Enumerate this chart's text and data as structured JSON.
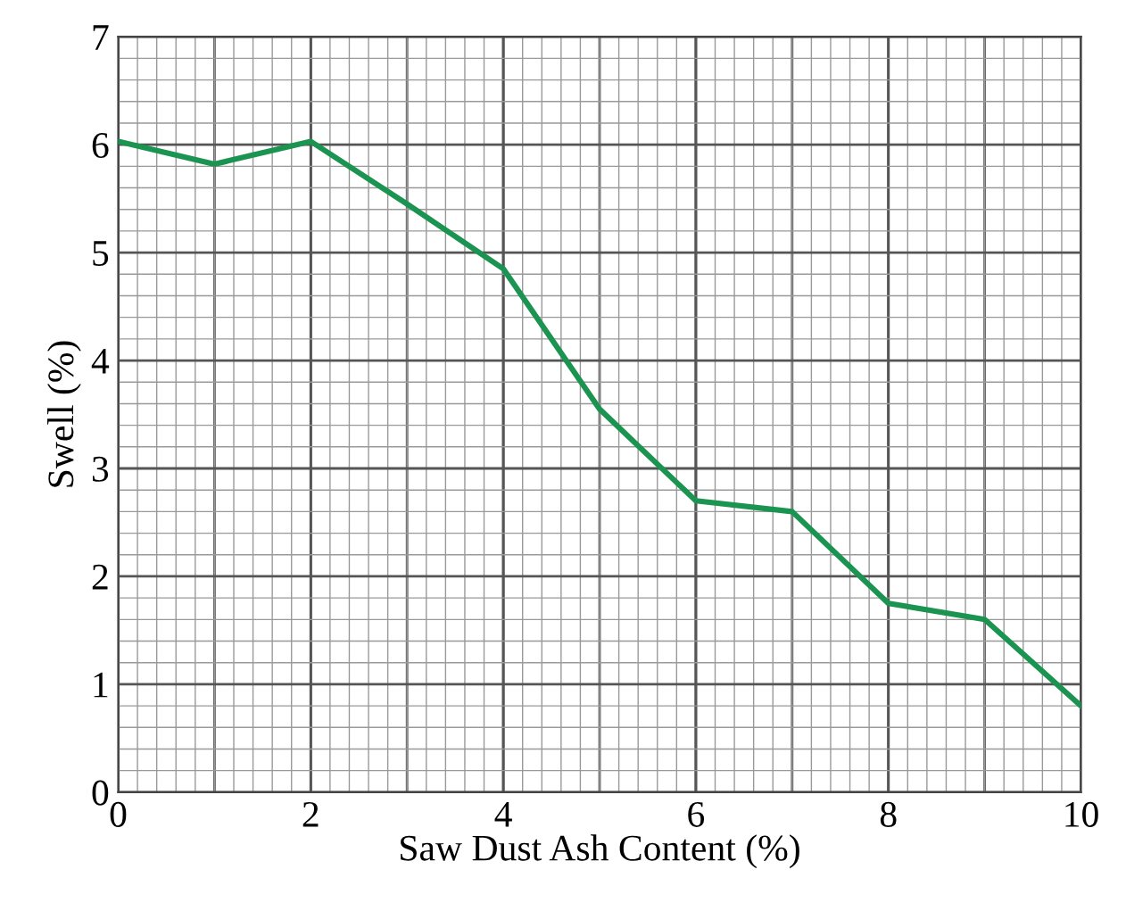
{
  "chart_data": {
    "type": "line",
    "xlabel": "Saw Dust Ash Content (%)",
    "ylabel": "Swell (%)",
    "x": [
      0,
      1,
      2,
      3,
      4,
      5,
      6,
      7,
      8,
      9,
      10
    ],
    "series": [
      {
        "color": "#1a9450",
        "values": [
          6.03,
          5.82,
          6.03,
          5.45,
          4.85,
          3.55,
          2.7,
          2.6,
          1.75,
          1.6,
          0.8
        ]
      }
    ],
    "xlim": [
      0,
      10
    ],
    "ylim": [
      0,
      7
    ],
    "xticks": [
      0,
      2,
      4,
      6,
      8,
      10
    ],
    "yticks": [
      0,
      1,
      2,
      3,
      4,
      5,
      6,
      7
    ],
    "grid": true,
    "marker": "none",
    "line_style": "solid"
  }
}
